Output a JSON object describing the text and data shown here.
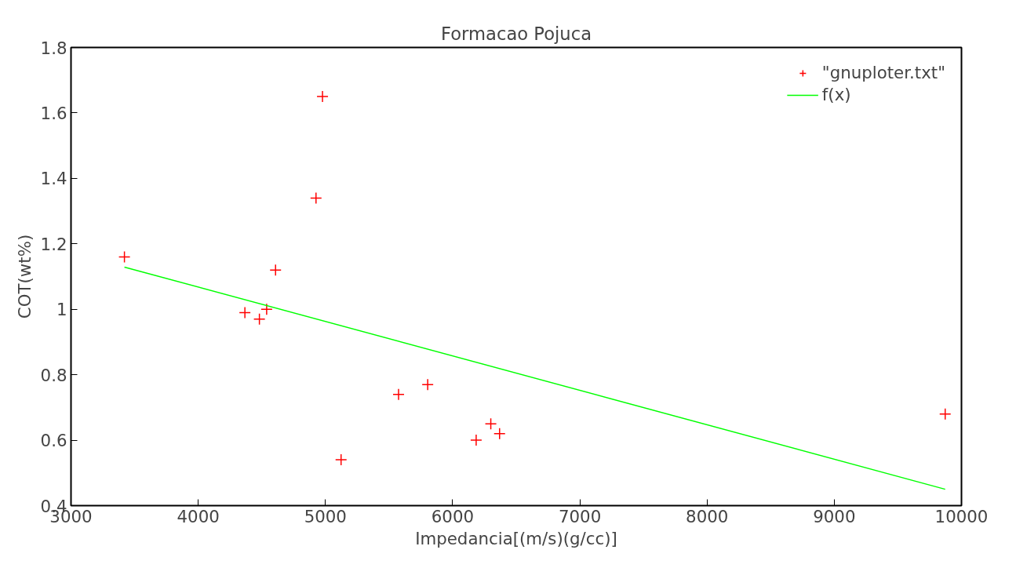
{
  "chart_data": {
    "type": "scatter",
    "title": "Formacao Pojuca",
    "xlabel": "Impedancia[(m/s)(g/cc)]",
    "ylabel": "COT(wt%)",
    "xlim": [
      3000,
      10000
    ],
    "xticks": [
      3000,
      4000,
      5000,
      6000,
      7000,
      8000,
      9000,
      10000
    ],
    "ylim": [
      0.4,
      1.8
    ],
    "yticks": [
      0.4,
      0.6,
      0.8,
      1,
      1.2,
      1.4,
      1.6,
      1.8
    ],
    "grid": false,
    "legend": "top right",
    "series": [
      {
        "name": "\"gnuploter.txt\"",
        "marker": "cross",
        "color": "#ff0000",
        "x": [
          3420,
          4367,
          4481,
          4538,
          4608,
          4926,
          4977,
          5123,
          5575,
          5804,
          6185,
          6300,
          6369,
          9872
        ],
        "values": [
          1.16,
          0.99,
          0.97,
          1.0,
          1.12,
          1.34,
          1.65,
          0.54,
          0.74,
          0.77,
          0.6,
          0.65,
          0.62,
          0.68
        ]
      },
      {
        "name": "f(x)",
        "type": "line",
        "line_style": "solid",
        "color": "#00ff00",
        "x": [
          3420,
          9872
        ],
        "values": [
          1.129,
          0.45
        ]
      }
    ]
  }
}
